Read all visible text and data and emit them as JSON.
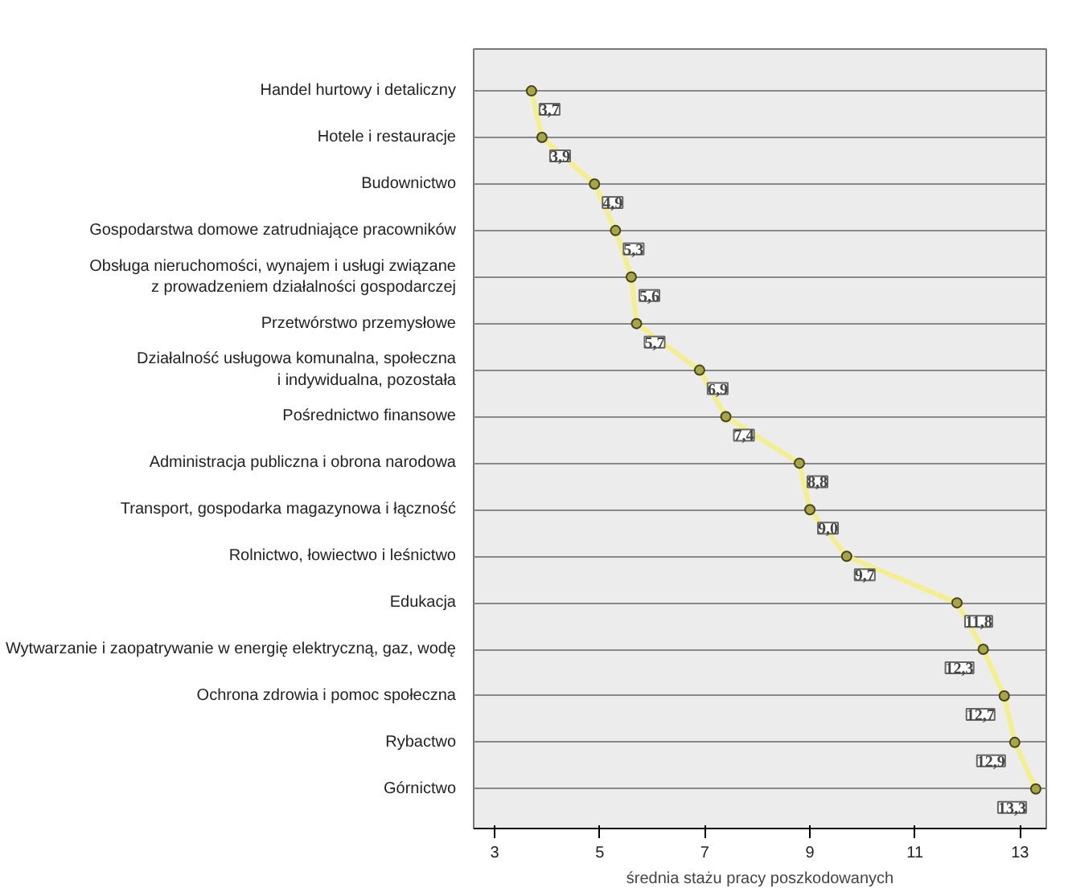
{
  "chart_data": {
    "type": "line",
    "orientation": "horizontal",
    "categories": [
      "Handel hurtowy i detaliczny",
      "Hotele i restauracje",
      "Budownictwo",
      "Gospodarstwa domowe zatrudniające pracowników",
      "Obsługa nieruchomości, wynajem i usługi związane\nz prowadzeniem działalności gospodarczej",
      "Przetwórstwo przemysłowe",
      "Działalność usługowa komunalna, społeczna\ni indywidualna, pozostała",
      "Pośrednictwo finansowe",
      "Administracja publiczna i obrona narodowa",
      "Transport, gospodarka magazynowa i łączność",
      "Rolnictwo, łowiectwo i leśnictwo",
      "Edukacja",
      "Wytwarzanie i zaopatrywanie w energię elektryczną, gaz, wodę",
      "Ochrona zdrowia i pomoc społeczna",
      "Rybactwo",
      "Górnictwo"
    ],
    "series": [
      {
        "color": "#f2ef8c",
        "values": [
          3.7,
          3.9,
          4.9,
          5.3,
          5.6,
          5.7,
          6.9,
          7.4,
          8.8,
          9.0,
          9.7,
          11.8,
          12.3,
          12.7,
          12.9,
          13.3
        ],
        "value_labels": [
          "3,7",
          "3,9",
          "4,9",
          "5,3",
          "5,6",
          "5,7",
          "6,9",
          "7,4",
          "8,8",
          "9,0",
          "9,7",
          "11,8",
          "12,3",
          "12,7",
          "12,9",
          "13,3"
        ]
      }
    ],
    "xlabel": "średnia stażu pracy poszkodowanych",
    "xlim": [
      2.6,
      13.5
    ],
    "xticks": [
      3,
      5,
      7,
      9,
      11,
      13
    ],
    "grid": "y",
    "marker": "circle",
    "line_style": "solid"
  }
}
